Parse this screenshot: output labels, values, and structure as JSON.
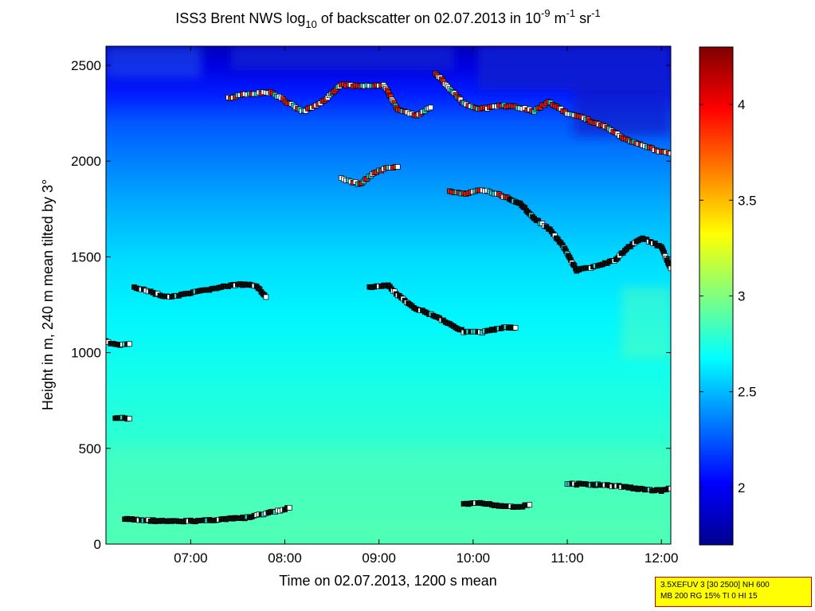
{
  "chart_data": {
    "type": "heatmap",
    "title": {
      "prefix": "ISS3 Brent NWS log",
      "prefix_sub": "10",
      "mid": " of backscatter on 02.07.2013 in 10",
      "exp1": "-9",
      "unit1": " m",
      "exp2": "-1",
      "unit2": " sr",
      "exp3": "-1"
    },
    "xlabel": "Time on 02.07.2013, 1200 s mean",
    "ylabel": "Height in m, 240 m mean tilted by 3°",
    "xlim": [
      6.1,
      12.1
    ],
    "ylim": [
      0,
      2600
    ],
    "x_ticks": [
      7,
      8,
      9,
      10,
      11,
      12
    ],
    "x_tick_labels": [
      "07:00",
      "08:00",
      "09:00",
      "10:00",
      "11:00",
      "12:00"
    ],
    "y_ticks": [
      0,
      500,
      1000,
      1500,
      2000,
      2500
    ],
    "y_tick_labels": [
      "0",
      "500",
      "1000",
      "1500",
      "2000",
      "2500"
    ],
    "colorbar": {
      "range": [
        1.7,
        4.3
      ],
      "ticks": [
        2,
        2.5,
        3,
        3.5,
        4
      ],
      "tick_labels": [
        "2",
        "2.5",
        "3",
        "3.5",
        "4"
      ],
      "colormap": "jet"
    },
    "field_profile": {
      "heights": [
        0,
        300,
        600,
        900,
        1200,
        1500,
        1800,
        2000,
        2200,
        2350,
        2500,
        2600
      ],
      "values": [
        2.85,
        2.82,
        2.78,
        2.72,
        2.65,
        2.58,
        2.45,
        2.35,
        2.25,
        2.1,
        1.95,
        1.85
      ]
    },
    "layers": [
      {
        "name": "surface-layer",
        "points": [
          [
            6.3,
            130
          ],
          [
            6.5,
            125
          ],
          [
            6.8,
            118
          ],
          [
            7.0,
            120
          ],
          [
            7.3,
            128
          ],
          [
            7.6,
            138
          ],
          [
            7.8,
            160
          ],
          [
            8.0,
            180
          ],
          [
            8.05,
            190
          ]
        ]
      },
      {
        "name": "surface-layer-2",
        "points": [
          [
            9.9,
            210
          ],
          [
            10.1,
            212
          ],
          [
            10.3,
            200
          ],
          [
            10.5,
            195
          ],
          [
            10.6,
            205
          ]
        ]
      },
      {
        "name": "surface-layer-3",
        "points": [
          [
            11.0,
            315
          ],
          [
            11.3,
            310
          ],
          [
            11.6,
            300
          ],
          [
            11.8,
            285
          ],
          [
            12.0,
            280
          ],
          [
            12.1,
            290
          ]
        ]
      },
      {
        "name": "low-layer",
        "points": [
          [
            6.2,
            660
          ],
          [
            6.35,
            655
          ]
        ]
      },
      {
        "name": "morning-layer",
        "points": [
          [
            6.1,
            1060
          ],
          [
            6.2,
            1040
          ],
          [
            6.35,
            1045
          ]
        ]
      },
      {
        "name": "boundary-layer-a",
        "points": [
          [
            6.4,
            1340
          ],
          [
            6.55,
            1320
          ],
          [
            6.75,
            1290
          ],
          [
            6.9,
            1300
          ],
          [
            7.1,
            1320
          ],
          [
            7.3,
            1340
          ],
          [
            7.5,
            1355
          ],
          [
            7.7,
            1350
          ],
          [
            7.8,
            1290
          ]
        ]
      },
      {
        "name": "boundary-layer-b",
        "points": [
          [
            8.9,
            1340
          ],
          [
            9.1,
            1350
          ],
          [
            9.2,
            1300
          ],
          [
            9.35,
            1240
          ],
          [
            9.6,
            1190
          ],
          [
            9.75,
            1150
          ],
          [
            9.9,
            1110
          ],
          [
            10.1,
            1105
          ],
          [
            10.3,
            1130
          ],
          [
            10.45,
            1130
          ]
        ]
      },
      {
        "name": "upper-layer-a",
        "points": [
          [
            8.6,
            1910
          ],
          [
            8.8,
            1880
          ],
          [
            8.95,
            1940
          ],
          [
            9.1,
            1965
          ],
          [
            9.2,
            1970
          ]
        ]
      },
      {
        "name": "upper-layer-b",
        "points": [
          [
            9.75,
            1840
          ],
          [
            9.9,
            1830
          ],
          [
            10.1,
            1850
          ],
          [
            10.3,
            1820
          ],
          [
            10.5,
            1780
          ],
          [
            10.65,
            1700
          ],
          [
            10.8,
            1650
          ],
          [
            10.95,
            1560
          ],
          [
            11.1,
            1430
          ],
          [
            11.3,
            1450
          ],
          [
            11.5,
            1480
          ],
          [
            11.65,
            1550
          ],
          [
            11.8,
            1600
          ],
          [
            12.0,
            1550
          ],
          [
            12.1,
            1440
          ]
        ]
      },
      {
        "name": "cloud-top-a",
        "points": [
          [
            7.4,
            2330
          ],
          [
            7.6,
            2350
          ],
          [
            7.85,
            2360
          ],
          [
            8.05,
            2300
          ],
          [
            8.2,
            2260
          ],
          [
            8.4,
            2310
          ],
          [
            8.6,
            2400
          ],
          [
            8.8,
            2390
          ],
          [
            9.05,
            2400
          ],
          [
            9.2,
            2270
          ],
          [
            9.4,
            2240
          ],
          [
            9.55,
            2280
          ]
        ]
      },
      {
        "name": "cloud-top-b",
        "points": [
          [
            9.6,
            2460
          ],
          [
            9.75,
            2380
          ],
          [
            9.9,
            2300
          ],
          [
            10.05,
            2270
          ],
          [
            10.3,
            2290
          ],
          [
            10.5,
            2280
          ],
          [
            10.65,
            2260
          ],
          [
            10.8,
            2310
          ],
          [
            11.0,
            2250
          ],
          [
            11.2,
            2220
          ],
          [
            11.4,
            2180
          ],
          [
            11.6,
            2120
          ],
          [
            11.8,
            2080
          ],
          [
            12.0,
            2050
          ],
          [
            12.1,
            2040
          ]
        ]
      }
    ]
  },
  "info_box": {
    "line1": "3.5XEFUV 3 [30 2500] NH 600",
    "line2": "MB 200 RG 15% TI 0 HI 15"
  }
}
